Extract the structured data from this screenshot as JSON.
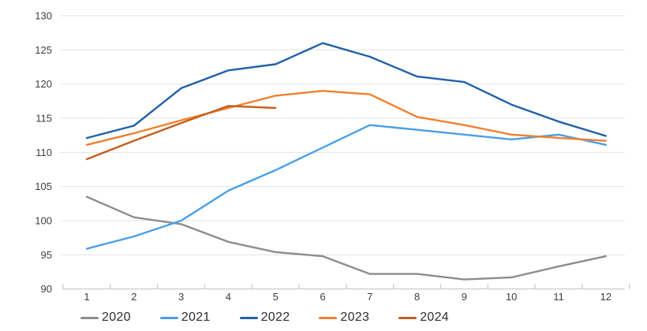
{
  "chart_data": {
    "type": "line",
    "title": "",
    "xlabel": "",
    "ylabel": "",
    "x": [
      1,
      2,
      3,
      4,
      5,
      6,
      7,
      8,
      9,
      10,
      11,
      12
    ],
    "x_tick_labels": [
      "1",
      "2",
      "3",
      "4",
      "5",
      "6",
      "7",
      "8",
      "9",
      "10",
      "11",
      "12"
    ],
    "y_tick_labels": [
      "90",
      "95",
      "100",
      "105",
      "110",
      "115",
      "120",
      "125",
      "130"
    ],
    "yticks": [
      90,
      95,
      100,
      105,
      110,
      115,
      120,
      125,
      130
    ],
    "ylim": [
      90,
      130
    ],
    "grid": "horizontal",
    "legend_position": "bottom",
    "series": [
      {
        "name": "2020",
        "color": "#8d8d8d",
        "values": [
          103.5,
          100.5,
          99.5,
          96.9,
          95.4,
          94.8,
          92.2,
          92.2,
          91.4,
          91.7,
          93.3,
          94.8
        ]
      },
      {
        "name": "2021",
        "color": "#4a9fe6",
        "values": [
          95.9,
          97.7,
          100.0,
          104.4,
          107.4,
          110.7,
          114.0,
          113.3,
          112.6,
          111.9,
          112.6,
          111.1
        ]
      },
      {
        "name": "2022",
        "color": "#2161aa",
        "values": [
          112.1,
          113.9,
          119.4,
          122.0,
          122.9,
          126.0,
          124.0,
          121.1,
          120.3,
          117.0,
          114.5,
          112.4
        ]
      },
      {
        "name": "2023",
        "color": "#f0802f",
        "values": [
          111.1,
          112.8,
          114.7,
          116.5,
          118.3,
          119.0,
          118.5,
          115.2,
          114.0,
          112.6,
          112.1,
          111.7
        ]
      },
      {
        "name": "2024",
        "color": "#c55f1d",
        "values": [
          109.0,
          111.7,
          114.3,
          116.8,
          116.5,
          null,
          null,
          null,
          null,
          null,
          null,
          null
        ]
      }
    ]
  },
  "style_colors": {
    "gridline": "#e3e3e3",
    "axis_line": "#c7c7c7",
    "tick_mark": "#c7c7c7",
    "tick_text": "#3e3e3e",
    "legend_text": "#2d2d2d"
  }
}
